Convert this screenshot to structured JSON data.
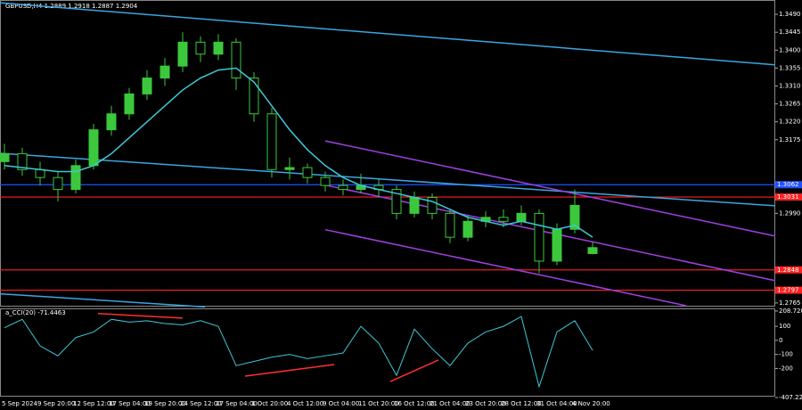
{
  "chart_data": [
    {
      "type": "candlestick",
      "title": "GBPUSD,H4  1.2889 1.2918 1.2887 1.2904",
      "categories": [
        "5 Sep 2024",
        null,
        "9 Sep 20:00",
        null,
        "12 Sep 12:00",
        null,
        "17 Sep 04:00",
        null,
        "19 Sep 20:00",
        null,
        "24 Sep 12:00",
        null,
        "27 Sep 04:00",
        null,
        "1 Oct 20:00",
        null,
        "4 Oct 12:00",
        null,
        "9 Oct 04:00",
        null,
        "11 Oct 20:00",
        null,
        "16 Oct 12:00",
        null,
        "21 Oct 04:00",
        null,
        "23 Oct 20:00",
        null,
        "28 Oct 12:00",
        null,
        "31 Oct 04:00",
        null,
        "4 Nov 20:00",
        null
      ],
      "open": [
        1.312,
        1.314,
        1.31,
        1.308,
        1.305,
        1.311,
        1.32,
        1.324,
        1.329,
        1.333,
        1.336,
        1.342,
        1.339,
        1.342,
        1.333,
        1.324,
        1.31,
        1.3105,
        1.308,
        1.306,
        1.305,
        1.306,
        1.305,
        1.299,
        1.303,
        1.299,
        1.293,
        1.297,
        1.298,
        1.297,
        1.299,
        1.287,
        1.295,
        1.2889
      ],
      "high": [
        1.3165,
        1.3155,
        1.312,
        1.3095,
        1.3125,
        1.3215,
        1.326,
        1.3305,
        1.335,
        1.338,
        1.3445,
        1.3435,
        1.344,
        1.343,
        1.3345,
        1.3255,
        1.313,
        1.3115,
        1.3095,
        1.3075,
        1.309,
        1.3075,
        1.306,
        1.3045,
        1.304,
        1.3,
        1.2985,
        1.2995,
        1.3,
        1.301,
        1.3,
        1.2965,
        1.305,
        1.2918
      ],
      "low": [
        1.31,
        1.3085,
        1.306,
        1.302,
        1.304,
        1.31,
        1.3185,
        1.3225,
        1.3275,
        1.331,
        1.3345,
        1.337,
        1.3375,
        1.33,
        1.322,
        1.308,
        1.3075,
        1.3065,
        1.3045,
        1.3035,
        1.304,
        1.303,
        1.2975,
        1.298,
        1.2975,
        1.2915,
        1.292,
        1.2955,
        1.2955,
        1.296,
        1.284,
        1.286,
        1.294,
        1.2887
      ],
      "close": [
        1.314,
        1.31,
        1.308,
        1.305,
        1.311,
        1.32,
        1.324,
        1.329,
        1.333,
        1.336,
        1.342,
        1.339,
        1.342,
        1.333,
        1.324,
        1.31,
        1.3105,
        1.308,
        1.306,
        1.305,
        1.306,
        1.305,
        1.299,
        1.303,
        1.299,
        1.293,
        1.297,
        1.298,
        1.297,
        1.299,
        1.287,
        1.295,
        1.301,
        1.2904
      ],
      "up_color": "#3cc83c",
      "down_color": "#000000",
      "wick_color": "#3cc83c",
      "ma": {
        "color": "#3ec8d8",
        "values": [
          1.311,
          1.3105,
          1.31,
          1.3095,
          1.3095,
          1.311,
          1.314,
          1.318,
          1.322,
          1.326,
          1.33,
          1.333,
          1.335,
          1.3355,
          1.332,
          1.326,
          1.32,
          1.315,
          1.311,
          1.308,
          1.306,
          1.305,
          1.304,
          1.303,
          1.302,
          1.3,
          1.298,
          1.297,
          1.296,
          1.297,
          1.296,
          1.295,
          1.296,
          1.293
        ]
      },
      "trendlines": [
        {
          "color": "#3aa6e0",
          "x": [
            -0.25,
            43.25
          ],
          "y": [
            1.3519,
            1.3363
          ]
        },
        {
          "color": "#3aa6e0",
          "x": [
            -0.25,
            43.25
          ],
          "y": [
            1.3141,
            1.3009
          ]
        },
        {
          "color": "#3aa6e0",
          "x": [
            -0.25,
            11.25
          ],
          "y": [
            1.2788,
            1.2755
          ]
        },
        {
          "color": "#a040e0",
          "x": [
            18,
            43.25
          ],
          "y": [
            1.3172,
            1.2933
          ]
        },
        {
          "color": "#a040e0",
          "x": [
            18,
            43.25
          ],
          "y": [
            1.3061,
            1.2821
          ]
        },
        {
          "color": "#a040e0",
          "x": [
            18,
            38.25
          ],
          "y": [
            1.2949,
            1.2758
          ]
        }
      ],
      "levels": [
        {
          "value": 1.3062,
          "color": "#2050ff"
        },
        {
          "value": 1.3031,
          "color": "#ff2020"
        },
        {
          "value": 1.2848,
          "color": "#ff2020"
        },
        {
          "value": 1.2797,
          "color": "#ff2020"
        }
      ],
      "ylim": [
        1.2758,
        1.3526
      ],
      "yticks": [
        {
          "value": 1.349,
          "label": "1.3490"
        },
        {
          "value": 1.3445,
          "label": "1.3445"
        },
        {
          "value": 1.34,
          "label": "1.3400"
        },
        {
          "value": 1.3355,
          "label": "1.3355"
        },
        {
          "value": 1.331,
          "label": "1.3310"
        },
        {
          "value": 1.3265,
          "label": "1.3265"
        },
        {
          "value": 1.322,
          "label": "1.3220"
        },
        {
          "value": 1.3175,
          "label": "1.3175"
        },
        {
          "value": 1.299,
          "label": "1.2990"
        },
        {
          "value": 1.2765,
          "label": "1.2765"
        }
      ]
    },
    {
      "type": "line",
      "title": "a_CCI(20) -71.4463",
      "color": "#3ec8d8",
      "values": [
        90,
        150,
        -40,
        -110,
        20,
        60,
        150,
        130,
        140,
        120,
        110,
        140,
        100,
        -180,
        -150,
        -120,
        -100,
        -130,
        -110,
        -90,
        100,
        -20,
        -250,
        80,
        -60,
        -180,
        -20,
        60,
        100,
        170,
        -330,
        60,
        140,
        -71.4463
      ],
      "divergences": [
        {
          "color": "#ff3030",
          "x": [
            5.25,
            10
          ],
          "y": [
            191,
            159
          ]
        },
        {
          "color": "#ff3030",
          "x": [
            13.5,
            18.5
          ],
          "y": [
            -255,
            -172
          ]
        },
        {
          "color": "#ff3030",
          "x": [
            21.65,
            24.35
          ],
          "y": [
            -293,
            -140
          ]
        }
      ],
      "ylim": [
        -407.2295,
        208.7205
      ],
      "yticks": [
        208.7205,
        100,
        0,
        -100,
        -200,
        -407.2295
      ]
    }
  ]
}
